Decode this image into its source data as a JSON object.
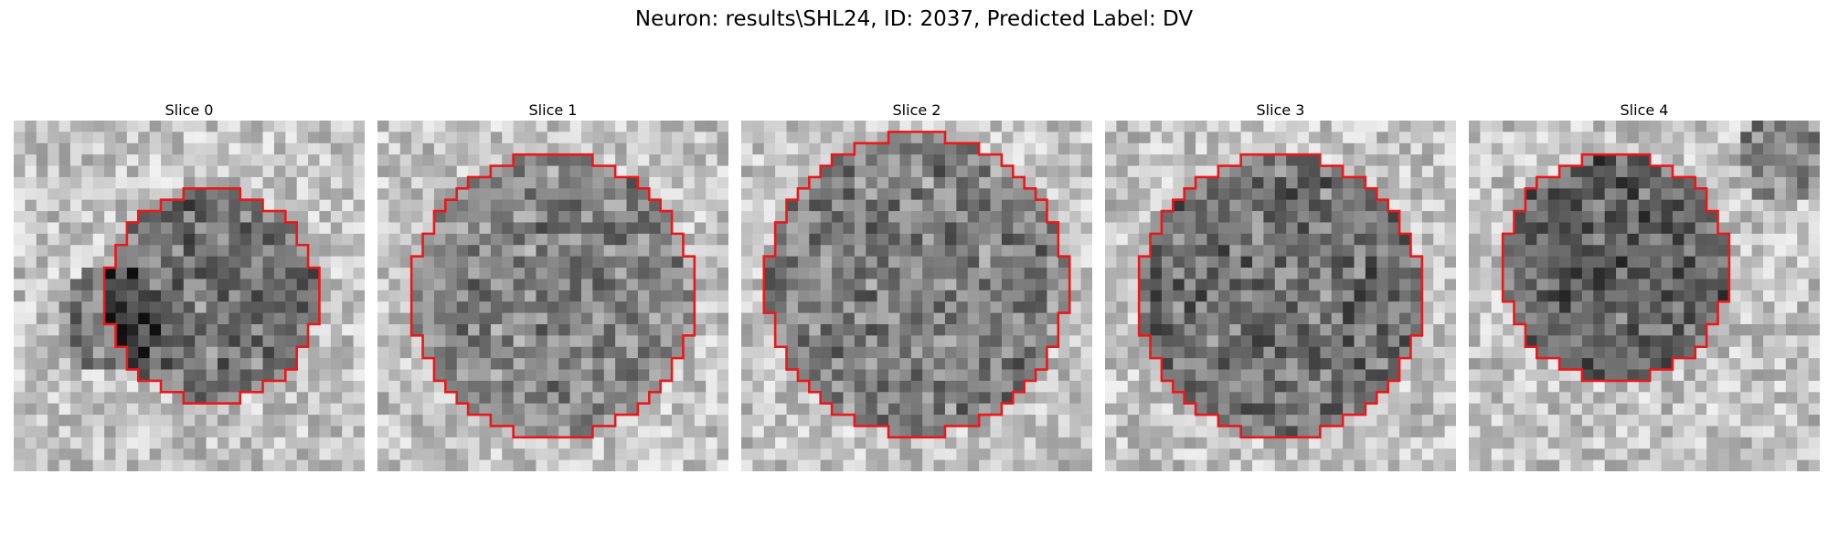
{
  "figure": {
    "title": "Neuron: results\\SHL24, ID: 2037, Predicted Label: DV"
  },
  "panels": [
    {
      "title": "Slice 0",
      "image": "grayscale-microscopy-slice",
      "overlay_color": "#e8191c"
    },
    {
      "title": "Slice 1",
      "image": "grayscale-microscopy-slice",
      "overlay_color": "#e8191c"
    },
    {
      "title": "Slice 2",
      "image": "grayscale-microscopy-slice",
      "overlay_color": "#e8191c"
    },
    {
      "title": "Slice 3",
      "image": "grayscale-microscopy-slice",
      "overlay_color": "#e8191c"
    },
    {
      "title": "Slice 4",
      "image": "grayscale-microscopy-slice",
      "overlay_color": "#e8191c"
    }
  ]
}
